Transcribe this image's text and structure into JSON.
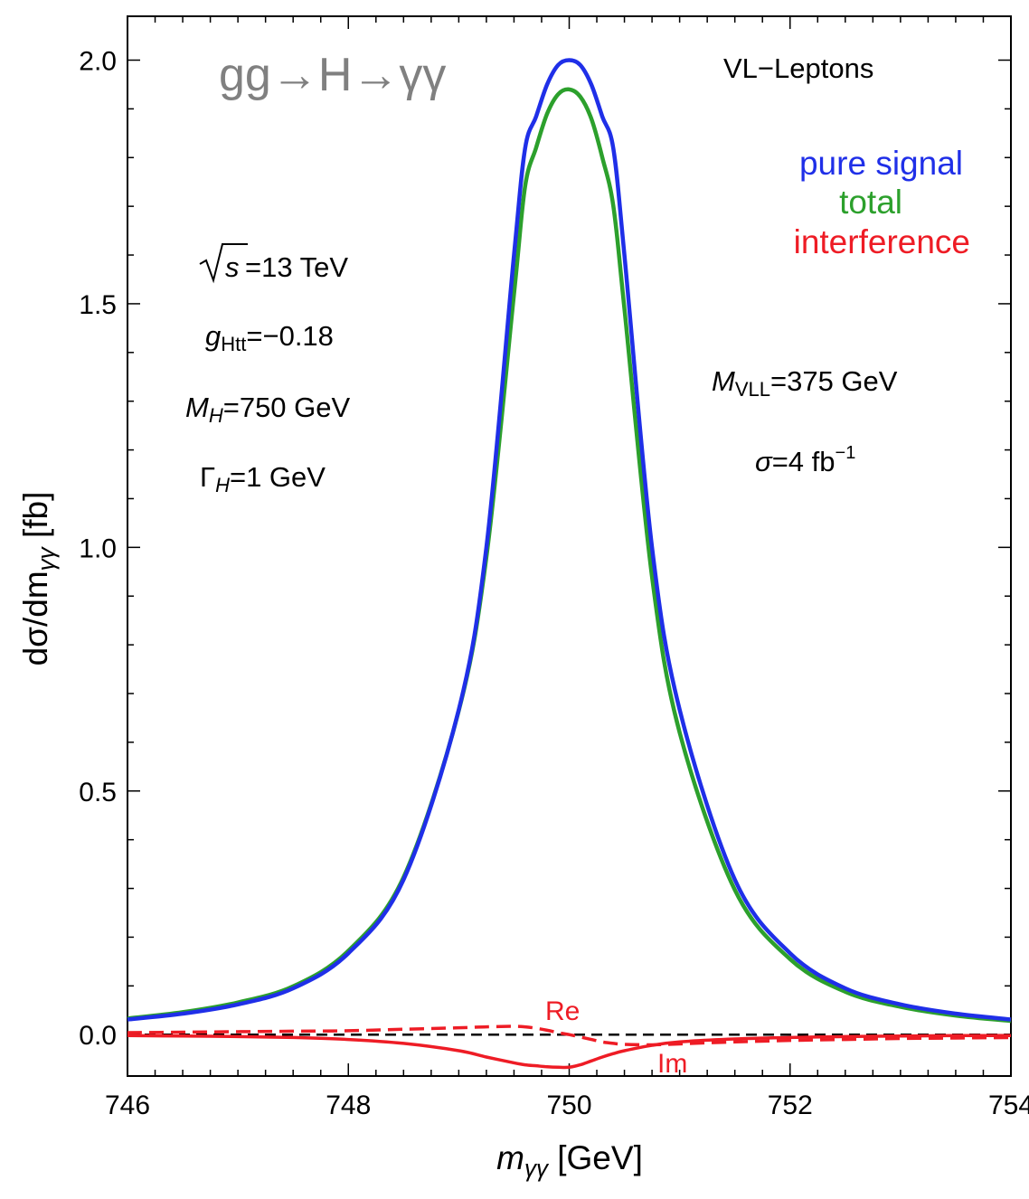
{
  "chart_data": {
    "type": "line",
    "title": "gg→H→γγ",
    "xlabel_main": "m",
    "xlabel_sub": "γγ",
    "xlabel_unit": " [GeV]",
    "ylabel_main": "dσ/dm",
    "ylabel_sub": "γγ",
    "ylabel_unit": " [fb]",
    "xlim": [
      746,
      754
    ],
    "ylim": [
      -0.085,
      2.09
    ],
    "xticks": [
      {
        "value": 746,
        "label": "746"
      },
      {
        "value": 748,
        "label": "748"
      },
      {
        "value": 750,
        "label": "750"
      },
      {
        "value": 752,
        "label": "752"
      },
      {
        "value": 754,
        "label": "754"
      }
    ],
    "yticks": [
      {
        "value": 0.0,
        "label": "0.0"
      },
      {
        "value": 0.5,
        "label": "0.5"
      },
      {
        "value": 1.0,
        "label": "1.0"
      },
      {
        "value": 1.5,
        "label": "1.5"
      },
      {
        "value": 2.0,
        "label": "2.0"
      }
    ],
    "model_label": "VL−Leptons",
    "legend": [
      {
        "text": "pure signal",
        "color": "#1f2fe8"
      },
      {
        "text": "total",
        "color": "#2ca02c"
      },
      {
        "text": "interference",
        "color": "#ee1c25"
      }
    ],
    "annotations_left": {
      "sqrt_s": "s",
      "sqrt_s_value": "=13 TeV",
      "g_main": "g",
      "g_sub": "Htt",
      "g_value": "=−0.18",
      "mh_main": "M",
      "mh_sub": "H",
      "mh_value": "=750 GeV",
      "gamma_main": "Γ",
      "gamma_sub": "H",
      "gamma_value": "=1 GeV"
    },
    "annotations_right": {
      "mvll_main": "M",
      "mvll_sub": "VLL",
      "mvll_value": "=375 GeV",
      "sigma_main": "σ",
      "sigma_value": "=4 fb",
      "sigma_sup": "−1"
    },
    "curve_labels": {
      "re": "Re",
      "im": "Im"
    },
    "x": [
      746,
      746.5,
      747,
      747.5,
      748,
      748.5,
      749,
      749.25,
      749.5,
      749.6,
      749.7,
      749.8,
      749.9,
      750,
      750.1,
      750.2,
      750.3,
      750.4,
      750.5,
      750.75,
      751,
      751.5,
      752,
      752.5,
      753,
      753.5,
      754
    ],
    "series": [
      {
        "name": "pure signal",
        "color": "#1f2fe8",
        "dash": false,
        "values": [
          0.031,
          0.043,
          0.062,
          0.095,
          0.167,
          0.318,
          0.667,
          1.0,
          1.6,
          1.818,
          1.884,
          1.95,
          1.99,
          2.0,
          1.99,
          1.95,
          1.884,
          1.818,
          1.6,
          1.0,
          0.667,
          0.318,
          0.167,
          0.095,
          0.062,
          0.043,
          0.031
        ]
      },
      {
        "name": "total",
        "color": "#2ca02c",
        "dash": false,
        "values": [
          0.033,
          0.046,
          0.066,
          0.099,
          0.172,
          0.323,
          0.665,
          0.98,
          1.52,
          1.74,
          1.82,
          1.89,
          1.93,
          1.94,
          1.925,
          1.88,
          1.8,
          1.7,
          1.49,
          0.94,
          0.62,
          0.297,
          0.155,
          0.088,
          0.057,
          0.039,
          0.028
        ]
      },
      {
        "name": "interference Re",
        "color": "#ee1c25",
        "dash": true,
        "values": [
          0.004,
          0.005,
          0.006,
          0.007,
          0.008,
          0.011,
          0.014,
          0.016,
          0.017,
          0.016,
          0.013,
          0.009,
          0.004,
          0.0,
          -0.005,
          -0.01,
          -0.015,
          -0.018,
          -0.02,
          -0.021,
          -0.019,
          -0.015,
          -0.012,
          -0.01,
          -0.008,
          -0.007,
          -0.006
        ]
      },
      {
        "name": "interference Im",
        "color": "#ee1c25",
        "dash": false,
        "values": [
          -0.002,
          -0.003,
          -0.004,
          -0.006,
          -0.01,
          -0.018,
          -0.033,
          -0.046,
          -0.058,
          -0.062,
          -0.064,
          -0.066,
          -0.067,
          -0.067,
          -0.062,
          -0.054,
          -0.046,
          -0.039,
          -0.033,
          -0.022,
          -0.015,
          -0.009,
          -0.006,
          -0.004,
          -0.003,
          -0.002,
          -0.002
        ]
      },
      {
        "name": "zero",
        "color": "#000000",
        "dash": true,
        "values": [
          0,
          0,
          0,
          0,
          0,
          0,
          0,
          0,
          0,
          0,
          0,
          0,
          0,
          0,
          0,
          0,
          0,
          0,
          0,
          0,
          0,
          0,
          0,
          0,
          0,
          0,
          0
        ]
      }
    ]
  }
}
